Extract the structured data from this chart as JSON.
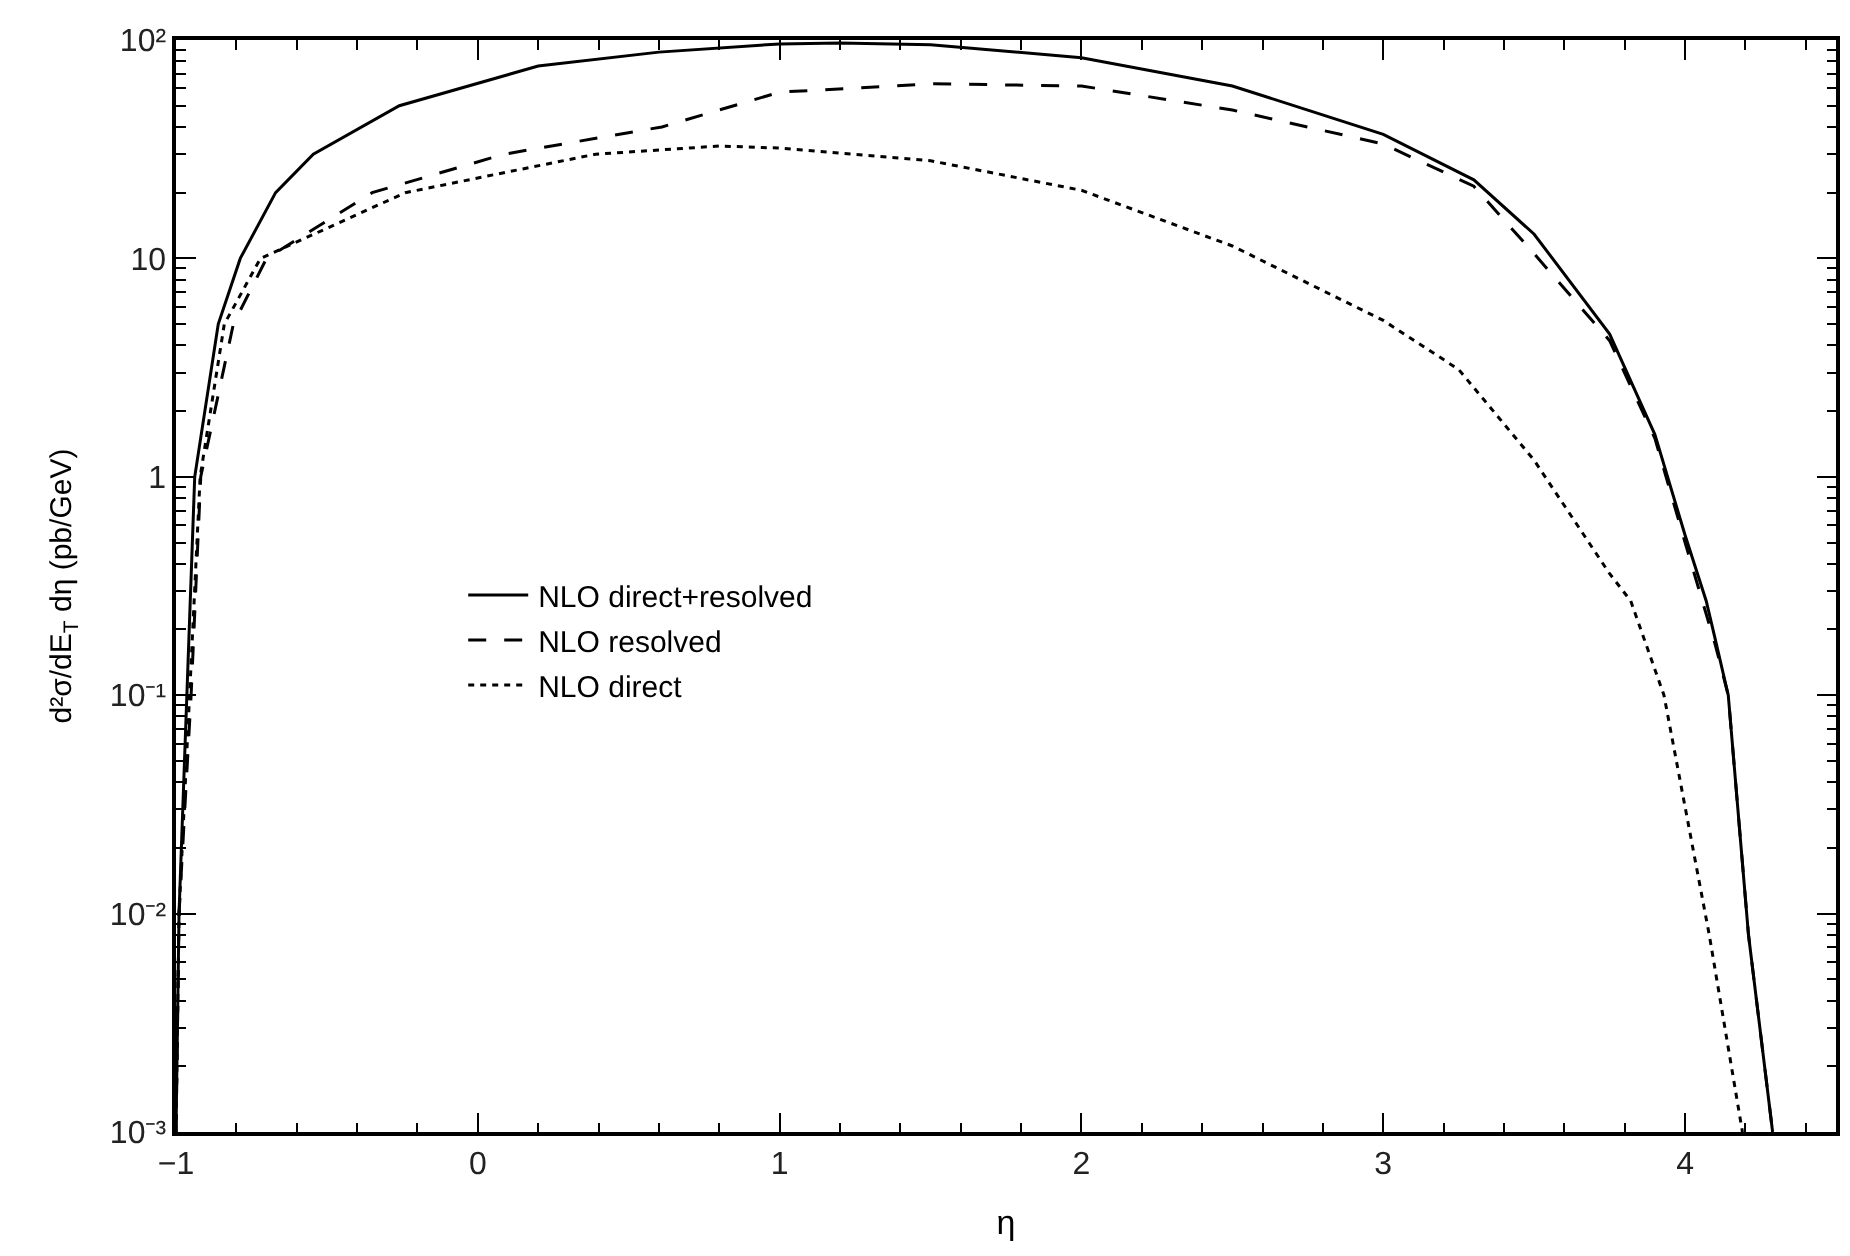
{
  "chart_data": {
    "type": "line",
    "xlabel": "η",
    "ylabel": "d²σ/dE$_{T}$ dη (pb/GeV)",
    "xlim": [
      -1,
      4.5
    ],
    "ylim": [
      0.001,
      100
    ],
    "xticks": [
      {
        "value": -1,
        "label": "−1"
      },
      0,
      1,
      2,
      3,
      4
    ],
    "yticks": [
      {
        "value": 0.001,
        "label": "10⁻³"
      },
      {
        "value": 0.01,
        "label": "10⁻²"
      },
      {
        "value": 0.1,
        "label": "10⁻¹"
      },
      1,
      10,
      {
        "value": 100,
        "label": "10²"
      }
    ],
    "log": true,
    "legend": "left",
    "marker": "none",
    "series": [
      {
        "name": "NLO direct+resolved",
        "color": "#000000",
        "line_style": "solid",
        "x": [
          -1.0,
          -0.99,
          -0.964,
          -0.938,
          -0.86,
          -0.787,
          -0.67,
          -0.545,
          -0.26,
          0.2,
          0.6,
          1.0,
          1.2,
          1.5,
          2.0,
          2.5,
          3.0,
          3.3,
          3.5,
          3.75,
          3.9,
          4.0,
          4.07,
          4.1,
          4.143,
          4.21,
          4.29
        ],
        "values": [
          0.001,
          0.01,
          0.1,
          1,
          5,
          10,
          20,
          30,
          50,
          76,
          88,
          96,
          97,
          95,
          83,
          61.6,
          37,
          22.9,
          12.9,
          4.5,
          1.56,
          0.54,
          0.27,
          0.18,
          0.1,
          0.008,
          0.001
        ]
      },
      {
        "name": "NLO resolved",
        "color": "#000000",
        "line_style": "dashed",
        "x": [
          -1.0,
          -0.99,
          -0.95,
          -0.918,
          -0.81,
          -0.7,
          -0.35,
          0.087,
          0.61,
          1.0,
          1.5,
          2.0,
          2.5,
          3.0,
          3.3,
          3.5,
          3.75,
          3.9,
          4.0,
          4.1,
          4.143,
          4.21,
          4.29
        ],
        "values": [
          0.001,
          0.01,
          0.1,
          1,
          5,
          10,
          20,
          30,
          40,
          57.7,
          63,
          61.6,
          47.8,
          33.4,
          21.4,
          10.5,
          4.2,
          1.5,
          0.5,
          0.17,
          0.1,
          0.008,
          0.001
        ]
      },
      {
        "name": "NLO direct",
        "color": "#000000",
        "line_style": "dotted",
        "x": [
          -1.0,
          -0.99,
          -0.955,
          -0.92,
          -0.84,
          -0.72,
          -0.24,
          0.39,
          0.8,
          1.0,
          1.5,
          2.0,
          2.5,
          3.0,
          3.25,
          3.5,
          3.75,
          3.82,
          3.93,
          4.08,
          4.19
        ],
        "values": [
          0.001,
          0.01,
          0.1,
          1,
          5,
          10,
          20,
          30,
          32.7,
          32,
          28,
          20.5,
          11.4,
          5.2,
          3.1,
          1.19,
          0.36,
          0.27,
          0.1,
          0.008,
          0.001
        ]
      }
    ]
  }
}
